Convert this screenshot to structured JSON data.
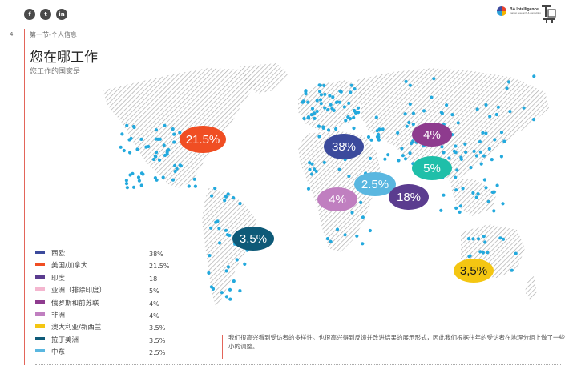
{
  "page": {
    "number": "4",
    "section": "第一节-个人信息",
    "title": "您在哪工作",
    "subtitle": "您工作的国家是"
  },
  "social": {
    "icons": [
      "f",
      "t",
      "in"
    ],
    "icon_names": [
      "facebook-icon",
      "twitter-icon",
      "linkedin-icon"
    ]
  },
  "logo": {
    "name": "BA Intelligence",
    "tagline": "market research & consulting"
  },
  "bubbles": [
    {
      "label": "21.5%",
      "color": "#f04e23"
    },
    {
      "label": "38%",
      "color": "#3b4a9c"
    },
    {
      "label": "4%",
      "color": "#8e3b8e"
    },
    {
      "label": "5%",
      "color": "#1fbfa9"
    },
    {
      "label": "2.5%",
      "color": "#5ab7e0"
    },
    {
      "label": "4%",
      "color": "#c07fc0"
    },
    {
      "label": "18%",
      "color": "#5b3c8f"
    },
    {
      "label": "3.5%",
      "color": "#0e5a78"
    },
    {
      "label": "3,5%",
      "color": "#f4c612"
    }
  ],
  "legend": [
    {
      "label": "西欧",
      "value": "38%",
      "color": "#3b4a9c"
    },
    {
      "label": "美国/加拿大",
      "value": "21.5%",
      "color": "#f04e23"
    },
    {
      "label": "印度",
      "value": "18",
      "color": "#5b3c8f"
    },
    {
      "label": "亚洲（排除印度）",
      "value": "5%",
      "color": "#f4b6cf"
    },
    {
      "label": "俄罗斯和前苏联",
      "value": "4%",
      "color": "#8e3b8e"
    },
    {
      "label": "非洲",
      "value": "4%",
      "color": "#c07fc0"
    },
    {
      "label": "澳大利亚/新西兰",
      "value": "3.5%",
      "color": "#f4c612"
    },
    {
      "label": "拉丁美洲",
      "value": "3.5%",
      "color": "#0e5a78"
    },
    {
      "label": "中东",
      "value": "2.5%",
      "color": "#5ab7e0"
    }
  ],
  "note": "我们很高兴看到受访者的多样性。也很高兴得到反馈并改进结果的展示形式，因此我们根据往年的受访者在地理分组上做了一些小的调整。"
}
